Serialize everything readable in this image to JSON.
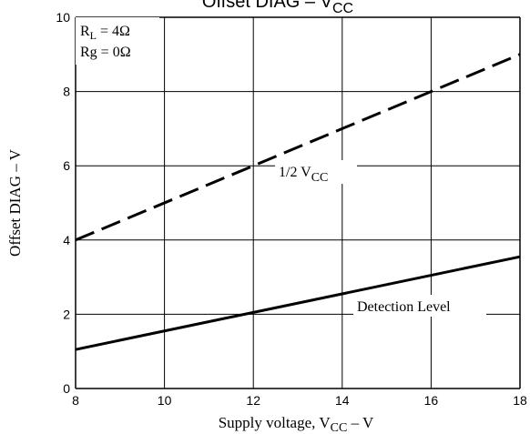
{
  "chart_data": {
    "type": "line",
    "title_main": "Offset DIAG  –  V",
    "title_sub": "CC",
    "xlabel_main": "Supply voltage, V",
    "xlabel_sub": "CC",
    "xlabel_tail": " – V",
    "ylabel": "Offset DIAG – V",
    "xlim": [
      8,
      18
    ],
    "ylim": [
      0,
      10
    ],
    "xticks": [
      8,
      10,
      12,
      14,
      16,
      18
    ],
    "yticks": [
      0,
      2,
      4,
      6,
      8,
      10
    ],
    "grid": true,
    "legend_box": {
      "line1_main": "R",
      "line1_sub": "L",
      "line1_tail": " = 4Ω",
      "line2": "Rg = 0Ω"
    },
    "series": [
      {
        "name": "1/2 VCC",
        "label_main": "1/2 V",
        "label_sub": "CC",
        "style": "dashed",
        "x": [
          8,
          18
        ],
        "y": [
          4,
          9
        ]
      },
      {
        "name": "Detection Level",
        "label_main": "Detection Level",
        "label_sub": "",
        "style": "solid",
        "x": [
          8,
          18
        ],
        "y": [
          1.05,
          3.55
        ]
      }
    ],
    "colors": {
      "line": "#000000",
      "grid": "#000000",
      "background": "#ffffff"
    }
  }
}
